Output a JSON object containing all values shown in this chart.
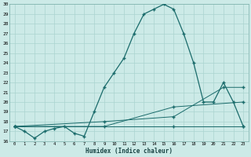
{
  "xlabel": "Humidex (Indice chaleur)",
  "bg_color": "#cceae7",
  "grid_color": "#aad4d0",
  "line_color": "#1a6b6b",
  "xlim": [
    -0.5,
    23.5
  ],
  "ylim": [
    16,
    30
  ],
  "yticks": [
    16,
    17,
    18,
    19,
    20,
    21,
    22,
    23,
    24,
    25,
    26,
    27,
    28,
    29,
    30
  ],
  "xticks": [
    0,
    1,
    2,
    3,
    4,
    5,
    6,
    7,
    8,
    9,
    10,
    11,
    12,
    13,
    14,
    15,
    16,
    17,
    18,
    19,
    20,
    21,
    22,
    23
  ],
  "line1_x": [
    0,
    1,
    2,
    3,
    4,
    5,
    6,
    7,
    8,
    9,
    10,
    11,
    12,
    13,
    14,
    15,
    16,
    17,
    18,
    19,
    20,
    21,
    22,
    23
  ],
  "line1_y": [
    17.5,
    17.0,
    16.3,
    17.0,
    17.3,
    17.5,
    16.8,
    16.5,
    19.0,
    21.5,
    23.0,
    24.5,
    27.0,
    29.0,
    29.5,
    30.0,
    29.5,
    27.0,
    24.0,
    20.0,
    20.0,
    22.0,
    20.0,
    17.5
  ],
  "line2_x": [
    0,
    16,
    23
  ],
  "line2_y": [
    17.5,
    17.5,
    17.5
  ],
  "line3_x": [
    0,
    9,
    16,
    23
  ],
  "line3_y": [
    17.5,
    17.5,
    19.5,
    20.0
  ],
  "line4_x": [
    0,
    9,
    16,
    21,
    23
  ],
  "line4_y": [
    17.5,
    18.0,
    18.5,
    21.5,
    21.5
  ]
}
